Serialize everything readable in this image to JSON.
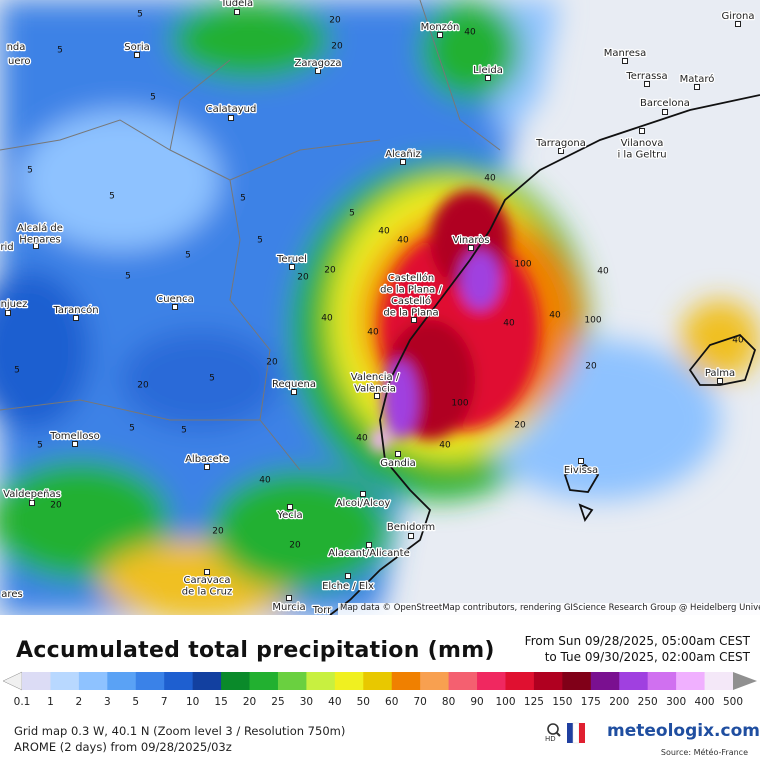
{
  "map": {
    "cities": [
      {
        "lines": [
          "Tudela"
        ]
      },
      {
        "lines": [
          "Monzón"
        ]
      },
      {
        "lines": [
          "Girona"
        ]
      },
      {
        "lines": [
          "nda"
        ]
      },
      {
        "lines": [
          "Soria"
        ]
      },
      {
        "lines": [
          "uero"
        ]
      },
      {
        "lines": [
          "Zaragoza"
        ]
      },
      {
        "lines": [
          "Lleida"
        ]
      },
      {
        "lines": [
          "Manresa"
        ]
      },
      {
        "lines": [
          "Terrassa"
        ]
      },
      {
        "lines": [
          "Mataró"
        ]
      },
      {
        "lines": [
          "Barcelona"
        ]
      },
      {
        "lines": [
          "Calatayud"
        ]
      },
      {
        "lines": [
          "Tarragona"
        ]
      },
      {
        "lines": [
          "Vilanova",
          "i la Geltru"
        ]
      },
      {
        "lines": [
          "Alcañiz"
        ]
      },
      {
        "lines": [
          "Alcalá de",
          "Henares"
        ]
      },
      {
        "lines": [
          "rid"
        ]
      },
      {
        "lines": [
          "Vinaròs"
        ]
      },
      {
        "lines": [
          "Teruel"
        ]
      },
      {
        "lines": [
          "Castellón",
          "de la Plana /",
          "Castelló",
          "de la Plana"
        ]
      },
      {
        "lines": [
          "Cuenca"
        ]
      },
      {
        "lines": [
          "njuez"
        ]
      },
      {
        "lines": [
          "Tarancón"
        ]
      },
      {
        "lines": [
          "Requena"
        ]
      },
      {
        "lines": [
          "Valencia /",
          "València"
        ]
      },
      {
        "lines": [
          "Palma"
        ]
      },
      {
        "lines": [
          "Tomelloso"
        ]
      },
      {
        "lines": [
          "Albacete"
        ]
      },
      {
        "lines": [
          "Gandia"
        ]
      },
      {
        "lines": [
          "Eivissa"
        ]
      },
      {
        "lines": [
          "Valdepeñas"
        ]
      },
      {
        "lines": [
          "Alcoi/Alcoy"
        ]
      },
      {
        "lines": [
          "Yecla"
        ]
      },
      {
        "lines": [
          "Benidorm"
        ]
      },
      {
        "lines": [
          "Alacant/Alicante"
        ]
      },
      {
        "lines": [
          "Caravaca",
          "de la Cruz"
        ]
      },
      {
        "lines": [
          "ares"
        ]
      },
      {
        "lines": [
          "Elche / Elx"
        ]
      },
      {
        "lines": [
          "Murcia"
        ]
      },
      {
        "lines": [
          "Torr"
        ]
      }
    ],
    "contour_labels": [
      "5",
      "20",
      "5",
      "5",
      "20",
      "40",
      "5",
      "5",
      "5",
      "5",
      "5",
      "20",
      "40",
      "40",
      "5",
      "5",
      "20",
      "40",
      "40",
      "100",
      "40",
      "40",
      "100",
      "40",
      "5",
      "20",
      "40",
      "100",
      "40",
      "20",
      "5",
      "20",
      "40",
      "20",
      "40",
      "20",
      "20",
      "5",
      "5",
      "40",
      "20",
      "5"
    ],
    "attribution": "Map data © OpenStreetMap contributors, rendering GIScience Research Group @ Heidelberg University"
  },
  "header": {
    "title": "Accumulated total precipitation (mm)",
    "from": "From Sun 09/28/2025, 05:00am CEST",
    "to": "to Tue 09/30/2025, 02:00am CEST"
  },
  "legend": {
    "labels": [
      "0.1",
      "1",
      "2",
      "3",
      "5",
      "7",
      "10",
      "15",
      "20",
      "25",
      "30",
      "40",
      "50",
      "60",
      "70",
      "80",
      "90",
      "100",
      "125",
      "150",
      "175",
      "200",
      "250",
      "300",
      "400",
      "500"
    ],
    "colors": [
      "#dcdcf5",
      "#b8d8ff",
      "#8ec2ff",
      "#5aa2f5",
      "#3a82e8",
      "#1e5fd0",
      "#1240a0",
      "#0a8a2a",
      "#22b030",
      "#6ad040",
      "#c8f040",
      "#f0f020",
      "#e8c800",
      "#f08000",
      "#f8a050",
      "#f46070",
      "#f02860",
      "#e01030",
      "#b00020",
      "#800018",
      "#7a1090",
      "#a040e0",
      "#d070f0",
      "#f0b0ff",
      "#f4e8f8"
    ],
    "low_color": "#f0f0f0",
    "high_color": "#909090"
  },
  "footer": {
    "grid": "Grid map 0.3 W, 40.1 N (Zoom level 3 / Resolution 750m)",
    "model": "AROME (2 days) from 09/28/2025/03z",
    "hd": "HD",
    "logo": "meteologix.com",
    "source": "Source: Météo-France"
  }
}
